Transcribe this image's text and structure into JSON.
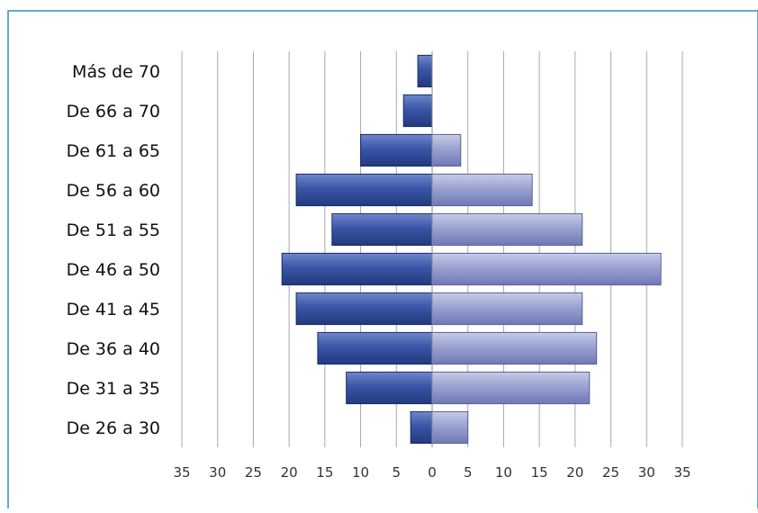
{
  "chart_data": {
    "type": "bar",
    "orientation": "horizontal",
    "layout": "population-pyramid",
    "categories": [
      "Más de 70",
      "De 66 a 70",
      "De 61 a 65",
      "De 56 a 60",
      "De 51 a 55",
      "De 46 a 50",
      "De 41 a 45",
      "De 36 a 40",
      "De 31 a 35",
      "De 26 a 30"
    ],
    "series": [
      {
        "side": "left",
        "color": "#2f4b9a",
        "values": [
          2,
          4,
          10,
          19,
          14,
          21,
          19,
          16,
          12,
          3
        ]
      },
      {
        "side": "right",
        "color": "#8c95c8",
        "values": [
          0,
          0,
          4,
          14,
          21,
          32,
          21,
          23,
          22,
          5
        ]
      }
    ],
    "xlim": [
      -35,
      35
    ],
    "xticks": [
      -35,
      -30,
      -25,
      -20,
      -15,
      -10,
      -5,
      0,
      5,
      10,
      15,
      20,
      25,
      30,
      35
    ],
    "xtick_labels": [
      "35",
      "30",
      "25",
      "20",
      "15",
      "10",
      "5",
      "0",
      "5",
      "10",
      "15",
      "20",
      "25",
      "30",
      "35"
    ],
    "grid": "vertical",
    "legend": "none",
    "frame_color": "#2a8fc0"
  }
}
